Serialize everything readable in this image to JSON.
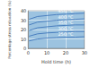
{
  "chart_data": {
    "type": "line",
    "xlabel": "Hold time (h)",
    "ylabel": "Percentage stress relaxation (%)",
    "x": [
      0.5,
      5,
      10,
      15,
      20,
      25,
      30
    ],
    "series": [
      {
        "name": "450 °C",
        "color": "#4a7fbf",
        "values": [
          31,
          34,
          35,
          36,
          36.5,
          37,
          37.5
        ]
      },
      {
        "name": "400 °C",
        "color": "#4a7fbf",
        "values": [
          25,
          28,
          29,
          30,
          30.5,
          31,
          31.5
        ]
      },
      {
        "name": "350 °C",
        "color": "#4a7fbf",
        "values": [
          19,
          22,
          23,
          24,
          24.5,
          25,
          25
        ]
      },
      {
        "name": "300 °C",
        "color": "#4a7fbf",
        "values": [
          13,
          15.5,
          16.5,
          17,
          17.5,
          18,
          18
        ]
      },
      {
        "name": "250 °C",
        "color": "#4a7fbf",
        "values": [
          8,
          10,
          11,
          11.5,
          12,
          12,
          12.5
        ]
      }
    ],
    "xlim": [
      0,
      30
    ],
    "xticks": [
      0,
      10,
      20,
      30
    ],
    "ylim": [
      0,
      40
    ],
    "yticks": [
      0,
      10,
      20,
      30,
      40
    ],
    "grid": true
  }
}
